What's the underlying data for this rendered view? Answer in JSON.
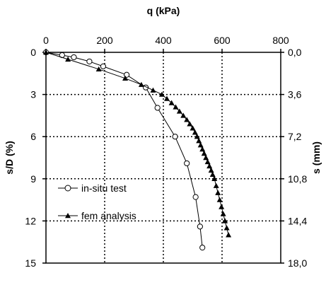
{
  "chart_data": {
    "type": "line",
    "title": "",
    "x_axis": {
      "label": "q (kPa)",
      "position": "top",
      "range": [
        0,
        800
      ],
      "ticks": [
        0,
        200,
        400,
        600,
        800
      ],
      "tick_labels": [
        "0",
        "200",
        "400",
        "600",
        "800"
      ]
    },
    "y_axis_left": {
      "label": "s/D (%)",
      "range": [
        0,
        15
      ],
      "inverted": true,
      "ticks": [
        0,
        3,
        6,
        9,
        12,
        15
      ],
      "tick_labels": [
        "0",
        "3",
        "6",
        "9",
        "12",
        "15"
      ]
    },
    "y_axis_right": {
      "label": "s (mm)",
      "ticks_at": [
        0,
        3,
        6,
        9,
        12,
        15
      ],
      "tick_labels": [
        "0,0",
        "3,6",
        "7,2",
        "10,8",
        "14,4",
        "18,0"
      ]
    },
    "grid": true,
    "legend_position": "left",
    "series": [
      {
        "name": "in-situ test",
        "marker": "open-circle",
        "x": [
          0,
          55,
          95,
          148,
          195,
          275,
          340,
          380,
          440,
          480,
          510,
          525,
          533
        ],
        "y": [
          0,
          0.2,
          0.35,
          0.65,
          1.0,
          1.6,
          2.5,
          3.95,
          6.0,
          7.9,
          10.3,
          12.4,
          13.9
        ]
      },
      {
        "name": "fem analysis",
        "marker": "filled-triangle",
        "x": [
          0,
          75,
          180,
          270,
          325,
          365,
          395,
          412,
          428,
          442,
          455,
          468,
          480,
          490,
          500,
          508,
          515,
          521,
          527,
          533,
          539,
          545,
          551,
          557,
          563,
          568,
          574,
          580,
          586,
          592,
          598,
          604,
          610,
          616,
          622
        ],
        "y": [
          0,
          0.5,
          1.2,
          1.85,
          2.3,
          2.7,
          3.0,
          3.3,
          3.6,
          3.9,
          4.2,
          4.5,
          4.8,
          5.1,
          5.4,
          5.7,
          6.0,
          6.3,
          6.6,
          6.9,
          7.2,
          7.5,
          7.8,
          8.1,
          8.4,
          8.7,
          9.0,
          9.5,
          10.0,
          10.5,
          11.0,
          11.5,
          12.0,
          12.5,
          13.0
        ]
      }
    ]
  }
}
